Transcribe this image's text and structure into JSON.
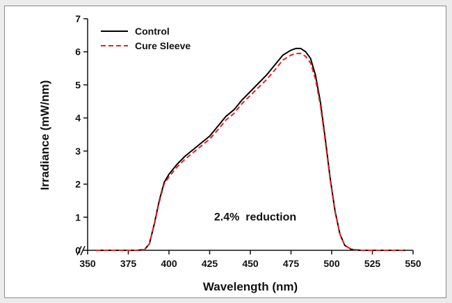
{
  "chart_data": {
    "type": "line",
    "title": "",
    "xlabel": "Wavelength (nm)",
    "ylabel": "Irradiance (mW/nm)",
    "xlim": [
      350,
      550
    ],
    "ylim": [
      0,
      7
    ],
    "x_ticks": [
      350,
      375,
      400,
      425,
      450,
      475,
      500,
      525,
      550
    ],
    "y_ticks": [
      0,
      1,
      2,
      3,
      4,
      5,
      6,
      7
    ],
    "grid": false,
    "legend_position": "top-left",
    "annotation": "2.4%  reduction",
    "series": [
      {
        "name": "Control",
        "color": "#000000",
        "style": "solid",
        "points": [
          [
            355,
            0
          ],
          [
            380,
            0
          ],
          [
            385,
            0.02
          ],
          [
            388,
            0.2
          ],
          [
            391,
            0.8
          ],
          [
            394,
            1.5
          ],
          [
            397,
            2.05
          ],
          [
            400,
            2.3
          ],
          [
            405,
            2.6
          ],
          [
            410,
            2.85
          ],
          [
            415,
            3.05
          ],
          [
            420,
            3.25
          ],
          [
            425,
            3.45
          ],
          [
            430,
            3.75
          ],
          [
            435,
            4.05
          ],
          [
            440,
            4.25
          ],
          [
            445,
            4.55
          ],
          [
            450,
            4.8
          ],
          [
            455,
            5.05
          ],
          [
            460,
            5.3
          ],
          [
            465,
            5.6
          ],
          [
            470,
            5.9
          ],
          [
            475,
            6.05
          ],
          [
            478,
            6.1
          ],
          [
            481,
            6.1
          ],
          [
            484,
            6.0
          ],
          [
            487,
            5.8
          ],
          [
            490,
            5.3
          ],
          [
            493,
            4.5
          ],
          [
            496,
            3.4
          ],
          [
            499,
            2.2
          ],
          [
            502,
            1.2
          ],
          [
            505,
            0.5
          ],
          [
            508,
            0.15
          ],
          [
            512,
            0.03
          ],
          [
            518,
            0
          ],
          [
            545,
            0
          ]
        ]
      },
      {
        "name": "Cure Sleeve",
        "color": "#e8201e",
        "style": "dashed",
        "points": [
          [
            355,
            0
          ],
          [
            380,
            0
          ],
          [
            385,
            0.02
          ],
          [
            388,
            0.2
          ],
          [
            391,
            0.78
          ],
          [
            394,
            1.46
          ],
          [
            397,
            2.0
          ],
          [
            400,
            2.22
          ],
          [
            405,
            2.52
          ],
          [
            410,
            2.76
          ],
          [
            415,
            2.96
          ],
          [
            420,
            3.16
          ],
          [
            425,
            3.36
          ],
          [
            430,
            3.64
          ],
          [
            435,
            3.94
          ],
          [
            440,
            4.14
          ],
          [
            445,
            4.44
          ],
          [
            450,
            4.68
          ],
          [
            455,
            4.92
          ],
          [
            460,
            5.16
          ],
          [
            465,
            5.45
          ],
          [
            470,
            5.75
          ],
          [
            475,
            5.9
          ],
          [
            478,
            5.95
          ],
          [
            481,
            5.95
          ],
          [
            484,
            5.86
          ],
          [
            487,
            5.66
          ],
          [
            490,
            5.18
          ],
          [
            493,
            4.4
          ],
          [
            496,
            3.32
          ],
          [
            499,
            2.15
          ],
          [
            502,
            1.17
          ],
          [
            505,
            0.49
          ],
          [
            508,
            0.15
          ],
          [
            512,
            0.03
          ],
          [
            518,
            0
          ],
          [
            545,
            0
          ]
        ]
      }
    ]
  }
}
